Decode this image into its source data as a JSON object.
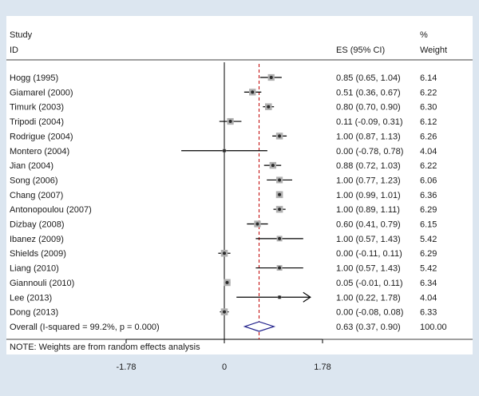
{
  "headers": {
    "study": "Study",
    "id": "ID",
    "es": "ES (95% CI)",
    "percent": "%",
    "weight": "Weight"
  },
  "note": "NOTE: Weights are from random effects analysis",
  "colors": {
    "background": "#dce6f0",
    "panel": "#ffffff",
    "ci_line": "#000000",
    "marker_box": "#b0b0b0",
    "point": "#2a2a2a",
    "overall_line": "#c00000",
    "diamond": "#1f1f8a"
  },
  "chart_data": {
    "type": "forest",
    "title": "",
    "xlabel": "",
    "xlim": [
      -1.78,
      1.78
    ],
    "xticks": [
      -1.78,
      0,
      1.78
    ],
    "xtick_labels": [
      "-1.78",
      "0",
      "1.78"
    ],
    "null_line": 0,
    "studies": [
      {
        "id": "Hogg (1995)",
        "es": 0.85,
        "lo": 0.65,
        "hi": 1.04,
        "ci_text": "0.85 (0.65, 1.04)",
        "weight": "6.14"
      },
      {
        "id": "Giamarel (2000)",
        "es": 0.51,
        "lo": 0.36,
        "hi": 0.67,
        "ci_text": "0.51 (0.36, 0.67)",
        "weight": "6.22"
      },
      {
        "id": "Timurk (2003)",
        "es": 0.8,
        "lo": 0.7,
        "hi": 0.9,
        "ci_text": "0.80 (0.70, 0.90)",
        "weight": "6.30"
      },
      {
        "id": "Tripodi (2004)",
        "es": 0.11,
        "lo": -0.09,
        "hi": 0.31,
        "ci_text": "0.11 (-0.09, 0.31)",
        "weight": "6.12"
      },
      {
        "id": "Rodrigue (2004)",
        "es": 1.0,
        "lo": 0.87,
        "hi": 1.13,
        "ci_text": "1.00 (0.87, 1.13)",
        "weight": "6.26"
      },
      {
        "id": "Montero (2004)",
        "es": 0.0,
        "lo": -0.78,
        "hi": 0.78,
        "ci_text": "0.00 (-0.78, 0.78)",
        "weight": "4.04"
      },
      {
        "id": "Jian (2004)",
        "es": 0.88,
        "lo": 0.72,
        "hi": 1.03,
        "ci_text": "0.88 (0.72, 1.03)",
        "weight": "6.22"
      },
      {
        "id": "Song (2006)",
        "es": 1.0,
        "lo": 0.77,
        "hi": 1.23,
        "ci_text": "1.00 (0.77, 1.23)",
        "weight": "6.06"
      },
      {
        "id": "Chang (2007)",
        "es": 1.0,
        "lo": 0.99,
        "hi": 1.01,
        "ci_text": "1.00 (0.99, 1.01)",
        "weight": "6.36"
      },
      {
        "id": "Antonopoulou (2007)",
        "es": 1.0,
        "lo": 0.89,
        "hi": 1.11,
        "ci_text": "1.00 (0.89, 1.11)",
        "weight": "6.29"
      },
      {
        "id": "Dizbay (2008)",
        "es": 0.6,
        "lo": 0.41,
        "hi": 0.79,
        "ci_text": "0.60 (0.41, 0.79)",
        "weight": "6.15"
      },
      {
        "id": "Ibanez (2009)",
        "es": 1.0,
        "lo": 0.57,
        "hi": 1.43,
        "ci_text": "1.00 (0.57, 1.43)",
        "weight": "5.42"
      },
      {
        "id": "Shields (2009)",
        "es": 0.0,
        "lo": -0.11,
        "hi": 0.11,
        "ci_text": "0.00 (-0.11, 0.11)",
        "weight": "6.29"
      },
      {
        "id": "Liang (2010)",
        "es": 1.0,
        "lo": 0.57,
        "hi": 1.43,
        "ci_text": "1.00 (0.57, 1.43)",
        "weight": "5.42"
      },
      {
        "id": "Giannouli (2010)",
        "es": 0.05,
        "lo": -0.01,
        "hi": 0.11,
        "ci_text": "0.05 (-0.01, 0.11)",
        "weight": "6.34"
      },
      {
        "id": "Lee (2013)",
        "es": 1.0,
        "lo": 0.22,
        "hi": 1.78,
        "ci_text": "1.00 (0.22, 1.78)",
        "weight": "4.04",
        "arrow": true
      },
      {
        "id": "Dong (2013)",
        "es": 0.0,
        "lo": -0.08,
        "hi": 0.08,
        "ci_text": "0.00 (-0.08, 0.08)",
        "weight": "6.33"
      }
    ],
    "overall": {
      "label": "Overall  (I-squared = 99.2%, p = 0.000)",
      "es": 0.63,
      "lo": 0.37,
      "hi": 0.9,
      "ci_text": "0.63 (0.37, 0.90)",
      "weight": "100.00"
    }
  }
}
